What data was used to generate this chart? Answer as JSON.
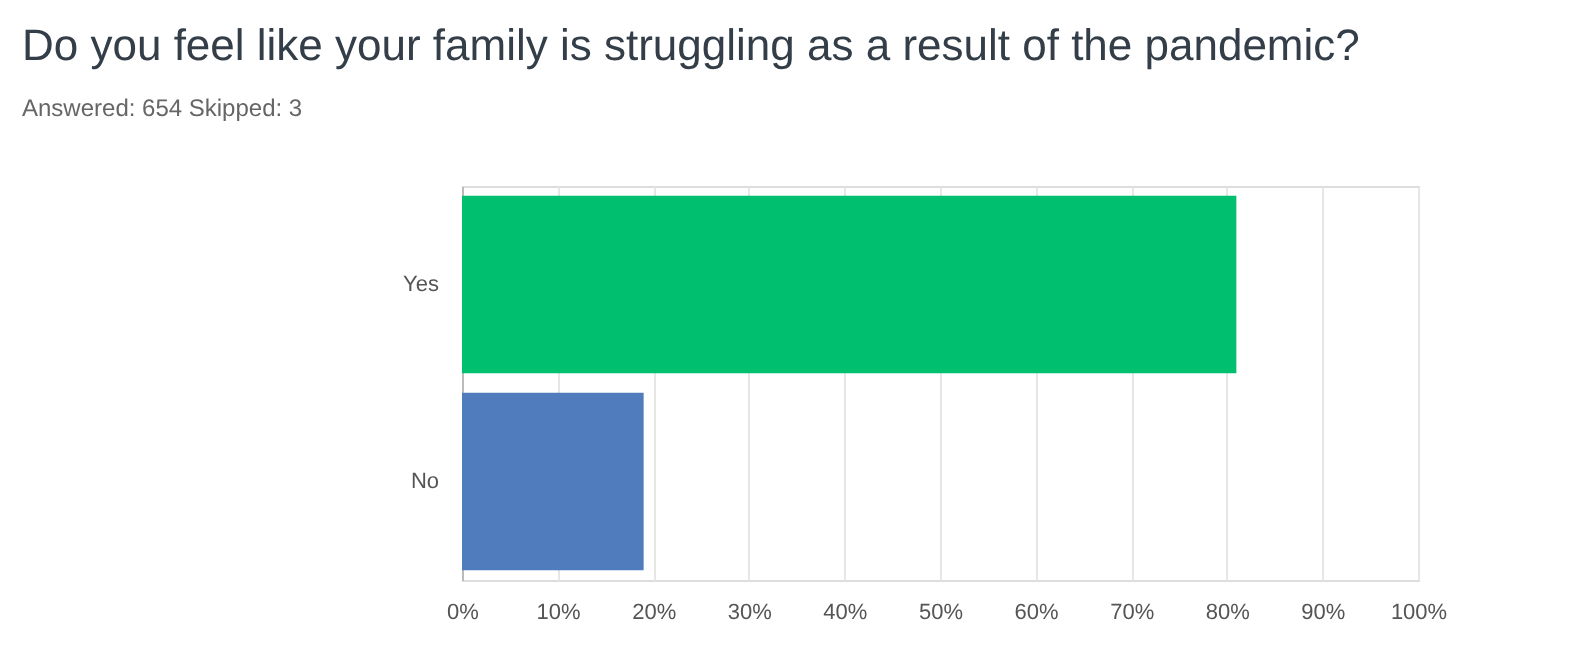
{
  "chart_data": {
    "type": "bar",
    "orientation": "horizontal",
    "title": "Do you feel like your family is struggling as a result of the pandemic?",
    "subtitle": "Answered: 654    Skipped: 3",
    "categories": [
      "Yes",
      "No"
    ],
    "values": [
      81,
      19
    ],
    "colors": [
      "#00bf6f",
      "#507cbe"
    ],
    "xlim": [
      0,
      100
    ],
    "xticks": [
      {
        "value": 0,
        "label": "0%"
      },
      {
        "value": 10,
        "label": "10%"
      },
      {
        "value": 20,
        "label": "20%"
      },
      {
        "value": 30,
        "label": "30%"
      },
      {
        "value": 40,
        "label": "40%"
      },
      {
        "value": 50,
        "label": "50%"
      },
      {
        "value": 60,
        "label": "60%"
      },
      {
        "value": 70,
        "label": "70%"
      },
      {
        "value": 80,
        "label": "80%"
      },
      {
        "value": 90,
        "label": "90%"
      },
      {
        "value": 100,
        "label": "100%"
      }
    ],
    "grid": "x"
  }
}
